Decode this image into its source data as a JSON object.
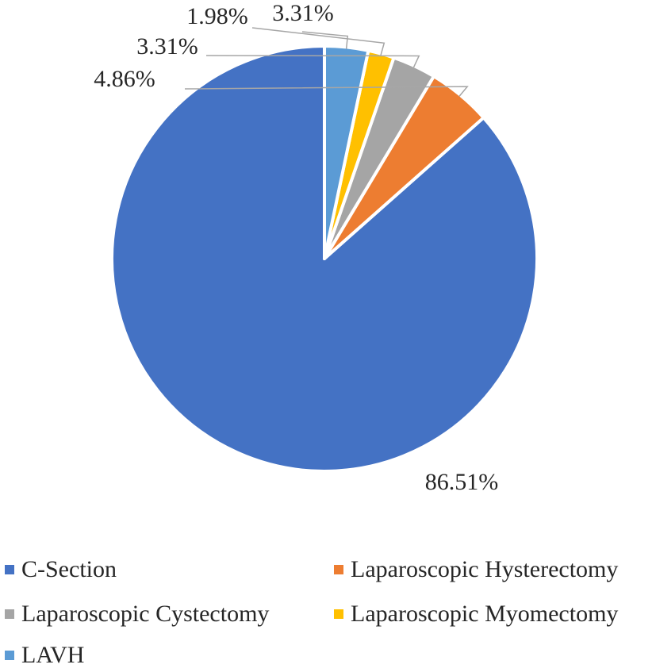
{
  "chart_data": {
    "type": "pie",
    "title": "",
    "slices": [
      {
        "label": "C-Section",
        "value": 86.51,
        "display": "86.51%",
        "color": "#4472C4"
      },
      {
        "label": "Laparoscopic Hysterectomy",
        "value": 4.86,
        "display": "4.86%",
        "color": "#ED7D31"
      },
      {
        "label": "Laparoscopic Cystectomy",
        "value": 3.31,
        "display": "3.31%",
        "color": "#A5A5A5"
      },
      {
        "label": "Laparoscopic Myomectomy",
        "value": 1.98,
        "display": "1.98%",
        "color": "#FFC000"
      },
      {
        "label": "LAVH",
        "value": 3.31,
        "display": "3.31%",
        "color": "#5B9BD5"
      }
    ],
    "legend_position": "bottom"
  }
}
